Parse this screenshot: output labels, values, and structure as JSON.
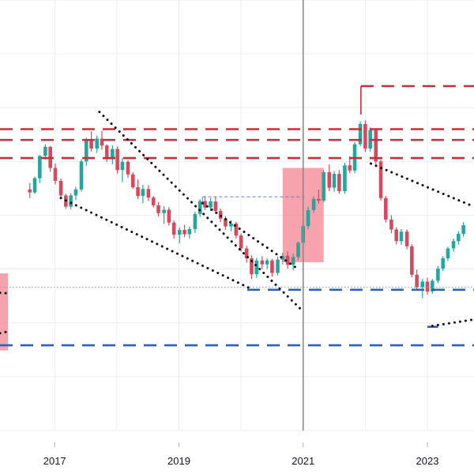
{
  "colors": {
    "background": "#ffffff",
    "grid": "#eceef2",
    "up_candle": "#26a69a",
    "down_candle": "#d64a5e",
    "resistance_line": "#c62e3a",
    "support_line": "#2f5fb8",
    "trend_line": "#111111",
    "zone_fill": "#f47f8f",
    "cursor_line": "#8a8a8a",
    "axis_text": "#131722"
  },
  "chart_data": {
    "type": "candlestick",
    "title": "",
    "xlabel": "",
    "ylabel": "",
    "x_ticks": [
      {
        "label": "2017",
        "year": 2017.0
      },
      {
        "label": "2019",
        "year": 2019.0
      },
      {
        "label": "2021",
        "year": 2021.0
      },
      {
        "label": "2023",
        "year": 2023.0
      }
    ],
    "xlim": [
      2016.12,
      2023.75
    ],
    "ylim": [
      0,
      100
    ],
    "grid": true,
    "legend": "none",
    "cursor_year": 2021.0,
    "candles": [
      [
        2016.6,
        56.0,
        57.5,
        54.0,
        55.3
      ],
      [
        2016.68,
        55.3,
        59.0,
        55.0,
        58.6
      ],
      [
        2016.76,
        58.6,
        64.0,
        57.5,
        63.8
      ],
      [
        2016.85,
        63.8,
        66.5,
        62.9,
        65.9
      ],
      [
        2016.93,
        65.9,
        66.1,
        60.1,
        61.0
      ],
      [
        2017.01,
        61.0,
        62.0,
        57.2,
        58.0
      ],
      [
        2017.1,
        58.0,
        58.5,
        54.0,
        54.6
      ],
      [
        2017.18,
        54.6,
        55.0,
        51.5,
        52.0
      ],
      [
        2017.26,
        52.0,
        55.1,
        51.4,
        54.6
      ],
      [
        2017.34,
        54.6,
        56.6,
        53.5,
        56.0
      ],
      [
        2017.43,
        56.0,
        63.0,
        55.5,
        62.5
      ],
      [
        2017.51,
        62.5,
        68.0,
        61.5,
        67.5
      ],
      [
        2017.59,
        67.5,
        69.5,
        64.8,
        65.5
      ],
      [
        2017.68,
        65.5,
        68.5,
        64.5,
        67.8
      ],
      [
        2017.76,
        67.8,
        69.6,
        65.2,
        66.2
      ],
      [
        2017.84,
        66.2,
        66.5,
        62.4,
        63.0
      ],
      [
        2017.93,
        63.0,
        66.3,
        61.8,
        65.4
      ],
      [
        2018.01,
        65.4,
        66.0,
        59.7,
        60.5
      ],
      [
        2018.09,
        60.5,
        63.3,
        57.7,
        62.4
      ],
      [
        2018.18,
        62.4,
        62.8,
        58.7,
        59.5
      ],
      [
        2018.26,
        59.5,
        60.0,
        56.1,
        56.5
      ],
      [
        2018.34,
        56.5,
        58.3,
        53.8,
        54.5
      ],
      [
        2018.42,
        54.5,
        57.1,
        52.8,
        56.1
      ],
      [
        2018.51,
        56.1,
        57.0,
        53.3,
        54.1
      ],
      [
        2018.59,
        54.1,
        54.5,
        51.8,
        52.3
      ],
      [
        2018.67,
        52.3,
        53.1,
        49.7,
        50.5
      ],
      [
        2018.76,
        50.5,
        52.1,
        48.0,
        51.3
      ],
      [
        2018.84,
        51.3,
        51.9,
        47.6,
        48.3
      ],
      [
        2018.92,
        48.3,
        48.8,
        44.6,
        45.5
      ],
      [
        2019.01,
        45.5,
        47.2,
        43.5,
        46.6
      ],
      [
        2019.09,
        46.6,
        47.8,
        44.9,
        45.6
      ],
      [
        2019.17,
        45.6,
        47.4,
        44.6,
        46.8
      ],
      [
        2019.26,
        46.8,
        50.8,
        45.9,
        50.3
      ],
      [
        2019.34,
        50.3,
        53.7,
        49.6,
        53.3
      ],
      [
        2019.42,
        53.3,
        54.5,
        51.2,
        51.8
      ],
      [
        2019.51,
        51.8,
        54.0,
        51.0,
        53.2
      ],
      [
        2019.59,
        53.2,
        54.4,
        50.3,
        51.0
      ],
      [
        2019.67,
        51.0,
        51.6,
        48.4,
        49.2
      ],
      [
        2019.75,
        49.2,
        49.8,
        46.6,
        47.4
      ],
      [
        2019.84,
        47.4,
        48.8,
        46.3,
        48.1
      ],
      [
        2019.92,
        48.1,
        48.5,
        44.6,
        45.3
      ],
      [
        2020.0,
        45.3,
        45.8,
        41.6,
        42.3
      ],
      [
        2020.09,
        42.3,
        42.9,
        39.0,
        40.0
      ],
      [
        2020.17,
        40.0,
        40.7,
        35.2,
        36.3
      ],
      [
        2020.25,
        36.3,
        40.1,
        35.5,
        39.5
      ],
      [
        2020.34,
        39.5,
        40.5,
        37.5,
        38.6
      ],
      [
        2020.42,
        38.6,
        40.0,
        37.5,
        39.5
      ],
      [
        2020.5,
        39.5,
        39.9,
        35.8,
        36.6
      ],
      [
        2020.59,
        36.6,
        40.4,
        36.0,
        39.7
      ],
      [
        2020.67,
        39.7,
        41.3,
        38.6,
        40.6
      ],
      [
        2020.75,
        40.6,
        41.6,
        37.6,
        38.5
      ],
      [
        2020.84,
        38.5,
        41.1,
        37.2,
        40.3
      ],
      [
        2020.92,
        40.3,
        44.0,
        39.6,
        43.6
      ],
      [
        2021.0,
        43.6,
        48.0,
        43.0,
        47.5
      ],
      [
        2021.08,
        47.5,
        52.0,
        46.8,
        51.2
      ],
      [
        2021.17,
        51.2,
        54.4,
        50.6,
        53.8
      ],
      [
        2021.25,
        53.8,
        56.0,
        52.7,
        53.4
      ],
      [
        2021.33,
        53.4,
        60.5,
        53.0,
        60.0
      ],
      [
        2021.42,
        60.0,
        61.8,
        55.6,
        56.4
      ],
      [
        2021.5,
        56.4,
        60.3,
        55.5,
        59.6
      ],
      [
        2021.58,
        59.6,
        60.5,
        55.0,
        55.6
      ],
      [
        2021.67,
        55.6,
        62.2,
        55.0,
        61.6
      ],
      [
        2021.75,
        61.6,
        63.7,
        59.8,
        60.4
      ],
      [
        2021.83,
        60.4,
        67.0,
        59.8,
        66.5
      ],
      [
        2021.92,
        66.5,
        71.8,
        66.0,
        71.2
      ],
      [
        2022.0,
        71.2,
        72.0,
        64.7,
        65.5
      ],
      [
        2022.08,
        65.5,
        70.4,
        64.8,
        69.8
      ],
      [
        2022.17,
        69.8,
        70.2,
        61.7,
        62.5
      ],
      [
        2022.25,
        62.5,
        62.9,
        53.4,
        54.0
      ],
      [
        2022.33,
        54.0,
        54.5,
        48.3,
        49.0
      ],
      [
        2022.42,
        49.0,
        50.0,
        45.8,
        46.7
      ],
      [
        2022.5,
        46.7,
        47.2,
        43.2,
        44.0
      ],
      [
        2022.58,
        44.0,
        46.8,
        43.1,
        46.2
      ],
      [
        2022.67,
        46.2,
        46.7,
        42.1,
        42.8
      ],
      [
        2022.75,
        42.8,
        43.3,
        35.6,
        36.2
      ],
      [
        2022.83,
        36.2,
        37.4,
        32.5,
        33.3
      ],
      [
        2022.92,
        33.3,
        35.2,
        30.8,
        34.6
      ],
      [
        2023.0,
        34.6,
        35.5,
        31.6,
        32.3
      ],
      [
        2023.08,
        32.3,
        35.2,
        31.8,
        34.8
      ],
      [
        2023.17,
        34.8,
        38.2,
        34.2,
        37.6
      ],
      [
        2023.25,
        37.6,
        40.5,
        37.0,
        40.0
      ],
      [
        2023.33,
        40.0,
        42.7,
        39.4,
        42.3
      ],
      [
        2023.42,
        42.3,
        44.6,
        41.5,
        44.0
      ],
      [
        2023.5,
        44.0,
        46.3,
        43.2,
        45.7
      ],
      [
        2023.58,
        45.7,
        48.4,
        45.0,
        47.7
      ]
    ],
    "horizontal_lines": [
      {
        "kind": "resistance",
        "y": 80.0,
        "x1": 2021.93,
        "x2": 2023.75
      },
      {
        "kind": "resistance",
        "y": 70.0,
        "x1": 2016.12,
        "x2": 2023.75
      },
      {
        "kind": "resistance",
        "y": 67.5,
        "x1": 2016.12,
        "x2": 2023.75
      },
      {
        "kind": "resistance",
        "y": 63.3,
        "x1": 2016.12,
        "x2": 2023.75
      },
      {
        "kind": "support",
        "y": 32.7,
        "x1": 2020.1,
        "x2": 2023.75
      },
      {
        "kind": "support",
        "y": 19.8,
        "x1": 2016.12,
        "x2": 2023.75
      },
      {
        "kind": "support",
        "y": 24.1,
        "x1": 2023.0,
        "x2": 2023.17
      }
    ],
    "trend_lines": [
      {
        "x1": 2017.72,
        "y1": 74.0,
        "x2": 2020.96,
        "y2": 28.2
      },
      {
        "x1": 2017.1,
        "y1": 54.0,
        "x2": 2020.12,
        "y2": 33.2
      },
      {
        "x1": 2019.38,
        "y1": 52.8,
        "x2": 2020.92,
        "y2": 37.5
      },
      {
        "x1": 2022.09,
        "y1": 62.0,
        "x2": 2023.75,
        "y2": 52.0
      },
      {
        "x1": 2023.08,
        "y1": 24.3,
        "x2": 2023.75,
        "y2": 25.8
      },
      {
        "x1": 2016.12,
        "y1": 32.0,
        "x2": 2016.3,
        "y2": 31.8
      },
      {
        "x1": 2016.12,
        "y1": 22.6,
        "x2": 2016.22,
        "y2": 22.9
      }
    ],
    "reference_lines": [
      {
        "style": "dashed-thin",
        "y": 54.3,
        "x1": 2019.38,
        "x2": 2021.02
      },
      {
        "style": "dotted-thin",
        "y": 33.3,
        "x1": 2016.12,
        "x2": 2023.75
      }
    ],
    "zones": [
      {
        "x1": 2020.67,
        "x2": 2021.33,
        "y1": 39.1,
        "y2": 61.0
      },
      {
        "x1": 2016.12,
        "x2": 2016.25,
        "y1": 18.6,
        "y2": 36.5
      }
    ]
  }
}
